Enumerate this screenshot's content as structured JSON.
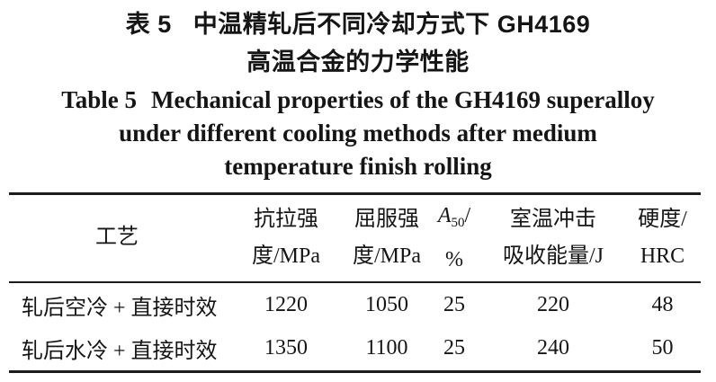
{
  "caption_zh": {
    "label": "表 5",
    "line1": "中温精轧后不同冷却方式下 GH4169",
    "line2": "高温合金的力学性能"
  },
  "caption_en": {
    "label": "Table 5",
    "line1": "Mechanical properties of the GH4169 superalloy",
    "line2": "under different cooling methods after medium",
    "line3": "temperature finish rolling"
  },
  "table": {
    "header": {
      "process": {
        "line1": "工艺"
      },
      "tensile": {
        "line1": "抗拉强",
        "line2": "度/MPa"
      },
      "yield": {
        "line1": "屈服强",
        "line2": "度/MPa"
      },
      "a50": {
        "symbol": "A",
        "subscript": "50",
        "slash": "/",
        "line2": "%"
      },
      "impact": {
        "line1": "室温冲击",
        "line2": "吸收能量/J"
      },
      "hardness": {
        "line1": "硬度/",
        "line2": "HRC"
      }
    },
    "rows": [
      {
        "process": "轧后空冷 + 直接时效",
        "tensile": "1220",
        "yield": "1050",
        "a50": "25",
        "impact": "220",
        "hardness": "48"
      },
      {
        "process": "轧后水冷 + 直接时效",
        "tensile": "1350",
        "yield": "1100",
        "a50": "25",
        "impact": "240",
        "hardness": "50"
      }
    ]
  },
  "colors": {
    "text": "#151515",
    "rule": "#1c1c1c",
    "background": "#ffffff"
  }
}
